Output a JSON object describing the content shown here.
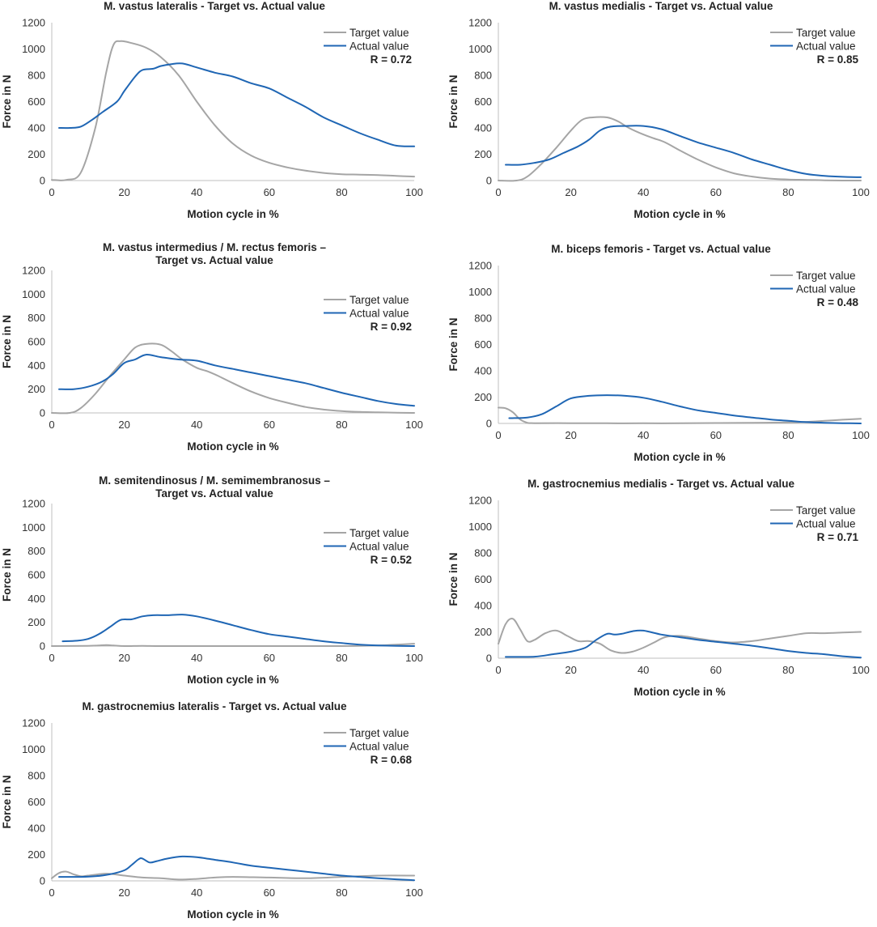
{
  "colors": {
    "target": "#a5a5a5",
    "actual": "#1f66b4",
    "axis": "#bfbfbf"
  },
  "chart_data": [
    {
      "type": "line",
      "title_lines": [
        "M. vastus lateralis - Target vs. Actual value"
      ],
      "xlabel": "Motion cycle in %",
      "ylabel": "Force in N",
      "xlim": [
        0,
        100
      ],
      "ylim": [
        0,
        1200
      ],
      "xticks": [
        "0",
        "20",
        "40",
        "60",
        "80",
        "100"
      ],
      "yticks": [
        "0",
        "200",
        "400",
        "600",
        "800",
        "1000",
        "1200"
      ],
      "r_label": "R = 0.72",
      "series": [
        {
          "name": "Target value",
          "x": [
            0,
            4,
            8,
            12,
            15,
            17,
            19,
            22,
            26,
            30,
            35,
            40,
            45,
            50,
            55,
            60,
            65,
            70,
            75,
            80,
            85,
            90,
            95,
            100
          ],
          "y": [
            5,
            5,
            60,
            400,
            820,
            1030,
            1060,
            1045,
            1010,
            940,
            800,
            600,
            420,
            280,
            190,
            135,
            100,
            75,
            58,
            48,
            45,
            42,
            35,
            30
          ]
        },
        {
          "name": "Actual value",
          "x": [
            2,
            5,
            8,
            11,
            14,
            18,
            20,
            23,
            25,
            28,
            30,
            33,
            36,
            40,
            45,
            50,
            55,
            60,
            65,
            70,
            75,
            80,
            85,
            90,
            95,
            100
          ],
          "y": [
            400,
            400,
            410,
            460,
            520,
            600,
            680,
            790,
            840,
            850,
            870,
            885,
            890,
            860,
            820,
            790,
            740,
            700,
            630,
            560,
            480,
            420,
            360,
            310,
            265,
            260
          ]
        }
      ]
    },
    {
      "type": "line",
      "title_lines": [
        "M. vastus medialis - Target vs. Actual value"
      ],
      "xlabel": "Motion cycle in %",
      "ylabel": "Force in N",
      "xlim": [
        0,
        100
      ],
      "ylim": [
        0,
        1200
      ],
      "xticks": [
        "0",
        "20",
        "40",
        "60",
        "80",
        "100"
      ],
      "yticks": [
        "0",
        "200",
        "400",
        "600",
        "800",
        "1000",
        "1200"
      ],
      "r_label": "R = 0.85",
      "series": [
        {
          "name": "Target value",
          "x": [
            0,
            5,
            8,
            12,
            16,
            20,
            23,
            26,
            30,
            33,
            36,
            40,
            43,
            46,
            50,
            55,
            60,
            65,
            70,
            75,
            80,
            85,
            90,
            95,
            100
          ],
          "y": [
            0,
            0,
            30,
            130,
            250,
            380,
            460,
            480,
            480,
            450,
            400,
            350,
            320,
            290,
            230,
            160,
            100,
            55,
            30,
            15,
            8,
            5,
            2,
            0,
            0
          ]
        },
        {
          "name": "Actual value",
          "x": [
            2,
            6,
            10,
            14,
            18,
            22,
            25,
            28,
            31,
            35,
            40,
            45,
            50,
            55,
            60,
            65,
            70,
            75,
            80,
            85,
            90,
            95,
            100
          ],
          "y": [
            120,
            120,
            135,
            160,
            210,
            260,
            310,
            380,
            410,
            415,
            415,
            390,
            340,
            290,
            250,
            210,
            160,
            120,
            80,
            50,
            35,
            28,
            25
          ]
        }
      ]
    },
    {
      "type": "line",
      "title_lines": [
        "M. vastus intermedius / M. rectus femoris –",
        "Target vs. Actual value"
      ],
      "xlabel": "Motion cycle in %",
      "ylabel": "Force in N",
      "xlim": [
        0,
        100
      ],
      "ylim": [
        0,
        1200
      ],
      "xticks": [
        "0",
        "20",
        "40",
        "60",
        "80",
        "100"
      ],
      "yticks": [
        "0",
        "200",
        "400",
        "600",
        "800",
        "1000",
        "1200"
      ],
      "r_label": "R = 0.92",
      "series": [
        {
          "name": "Target value",
          "x": [
            0,
            5,
            8,
            12,
            16,
            20,
            23,
            26,
            30,
            33,
            36,
            40,
            43,
            46,
            50,
            55,
            60,
            65,
            70,
            75,
            80,
            85,
            90,
            95,
            100
          ],
          "y": [
            0,
            0,
            40,
            160,
            310,
            450,
            550,
            580,
            575,
            520,
            450,
            380,
            350,
            310,
            250,
            180,
            125,
            85,
            50,
            28,
            15,
            8,
            5,
            2,
            0
          ]
        },
        {
          "name": "Actual value",
          "x": [
            2,
            6,
            10,
            14,
            17,
            20,
            23,
            26,
            30,
            35,
            40,
            45,
            50,
            55,
            60,
            65,
            70,
            75,
            80,
            85,
            90,
            95,
            100
          ],
          "y": [
            200,
            200,
            220,
            265,
            330,
            420,
            450,
            490,
            470,
            450,
            440,
            400,
            370,
            340,
            310,
            280,
            250,
            210,
            170,
            135,
            100,
            75,
            60
          ]
        }
      ]
    },
    {
      "type": "line",
      "title_lines": [
        "M. biceps femoris - Target vs. Actual value"
      ],
      "xlabel": "Motion cycle in %",
      "ylabel": "Force in N",
      "xlim": [
        0,
        100
      ],
      "ylim": [
        0,
        1200
      ],
      "xticks": [
        "0",
        "20",
        "40",
        "60",
        "80",
        "100"
      ],
      "yticks": [
        "0",
        "200",
        "400",
        "600",
        "800",
        "1000",
        "1200"
      ],
      "r_label": "R = 0.48",
      "series": [
        {
          "name": "Target value",
          "x": [
            0,
            2,
            4,
            6,
            8,
            10,
            20,
            30,
            40,
            50,
            60,
            70,
            80,
            85,
            90,
            95,
            100
          ],
          "y": [
            120,
            115,
            85,
            30,
            5,
            2,
            2,
            1,
            1,
            1,
            3,
            5,
            8,
            12,
            20,
            28,
            35
          ]
        },
        {
          "name": "Actual value",
          "x": [
            3,
            8,
            12,
            16,
            20,
            25,
            30,
            35,
            40,
            45,
            50,
            55,
            60,
            65,
            70,
            75,
            80,
            85,
            90,
            95,
            100
          ],
          "y": [
            40,
            45,
            70,
            130,
            190,
            210,
            215,
            210,
            195,
            165,
            130,
            100,
            80,
            60,
            45,
            30,
            20,
            10,
            5,
            2,
            0
          ]
        }
      ]
    },
    {
      "type": "line",
      "title_lines": [
        "M. semitendinosus / M. semimembranosus –",
        "Target vs. Actual value"
      ],
      "xlabel": "Motion cycle in %",
      "ylabel": "Force in N",
      "xlim": [
        0,
        100
      ],
      "ylim": [
        0,
        1200
      ],
      "xticks": [
        "0",
        "20",
        "40",
        "60",
        "80",
        "100"
      ],
      "yticks": [
        "0",
        "200",
        "400",
        "600",
        "800",
        "1000",
        "1200"
      ],
      "r_label": "R = 0.52",
      "series": [
        {
          "name": "Target value",
          "x": [
            0,
            10,
            15,
            17,
            20,
            25,
            30,
            40,
            50,
            60,
            70,
            80,
            90,
            95,
            100
          ],
          "y": [
            0,
            2,
            8,
            5,
            0,
            2,
            0,
            0,
            0,
            0,
            0,
            0,
            5,
            12,
            20
          ]
        },
        {
          "name": "Actual value",
          "x": [
            3,
            7,
            10,
            13,
            16,
            19,
            22,
            25,
            28,
            32,
            36,
            40,
            45,
            50,
            55,
            60,
            65,
            70,
            75,
            80,
            85,
            90,
            95,
            100
          ],
          "y": [
            40,
            45,
            60,
            100,
            160,
            220,
            225,
            250,
            260,
            260,
            265,
            250,
            215,
            175,
            135,
            100,
            80,
            60,
            40,
            25,
            12,
            5,
            2,
            0
          ]
        }
      ]
    },
    {
      "type": "line",
      "title_lines": [
        "M. gastrocnemius medialis - Target vs. Actual value"
      ],
      "xlabel": "Motion cycle in %",
      "ylabel": "Force in N",
      "xlim": [
        0,
        100
      ],
      "ylim": [
        0,
        1200
      ],
      "xticks": [
        "0",
        "20",
        "40",
        "60",
        "80",
        "100"
      ],
      "yticks": [
        "0",
        "200",
        "400",
        "600",
        "800",
        "1000",
        "1200"
      ],
      "r_label": "R = 0.71",
      "series": [
        {
          "name": "Target value",
          "x": [
            0,
            2,
            4,
            6,
            8,
            10,
            13,
            16,
            19,
            22,
            25,
            28,
            31,
            34,
            37,
            40,
            43,
            46,
            50,
            55,
            60,
            65,
            70,
            75,
            80,
            85,
            90,
            95,
            100
          ],
          "y": [
            110,
            260,
            300,
            220,
            130,
            140,
            190,
            210,
            170,
            130,
            130,
            110,
            60,
            40,
            50,
            80,
            120,
            160,
            170,
            150,
            130,
            120,
            130,
            150,
            170,
            190,
            190,
            195,
            200
          ]
        },
        {
          "name": "Actual value",
          "x": [
            2,
            10,
            15,
            20,
            24,
            27,
            30,
            32,
            34,
            37,
            40,
            45,
            50,
            55,
            60,
            65,
            70,
            75,
            80,
            85,
            90,
            95,
            100
          ],
          "y": [
            10,
            12,
            30,
            50,
            80,
            140,
            185,
            180,
            185,
            205,
            210,
            180,
            160,
            140,
            125,
            110,
            95,
            75,
            55,
            40,
            30,
            15,
            5
          ]
        }
      ]
    },
    {
      "type": "line",
      "title_lines": [
        "M. gastrocnemius lateralis - Target vs. Actual value"
      ],
      "xlabel": "Motion cycle in %",
      "ylabel": "Force in N",
      "xlim": [
        0,
        100
      ],
      "ylim": [
        0,
        1200
      ],
      "xticks": [
        "0",
        "20",
        "40",
        "60",
        "80",
        "100"
      ],
      "yticks": [
        "0",
        "200",
        "400",
        "600",
        "800",
        "1000",
        "1200"
      ],
      "r_label": "R = 0.68",
      "series": [
        {
          "name": "Target value",
          "x": [
            0,
            2,
            4,
            6,
            8,
            10,
            15,
            20,
            25,
            30,
            35,
            40,
            45,
            50,
            60,
            70,
            80,
            90,
            100
          ],
          "y": [
            20,
            60,
            70,
            50,
            35,
            40,
            55,
            40,
            25,
            20,
            10,
            15,
            25,
            30,
            25,
            20,
            30,
            40,
            40
          ]
        },
        {
          "name": "Actual value",
          "x": [
            2,
            8,
            12,
            16,
            20,
            22,
            24,
            25,
            27,
            29,
            32,
            36,
            40,
            45,
            50,
            55,
            60,
            65,
            70,
            75,
            80,
            85,
            90,
            95,
            100
          ],
          "y": [
            30,
            30,
            35,
            50,
            80,
            120,
            165,
            170,
            140,
            150,
            170,
            185,
            180,
            160,
            140,
            115,
            100,
            85,
            70,
            55,
            40,
            30,
            20,
            12,
            5
          ]
        }
      ]
    }
  ]
}
